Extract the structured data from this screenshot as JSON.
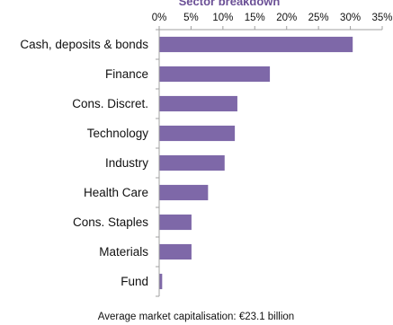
{
  "chart_data": {
    "type": "bar",
    "orientation": "horizontal",
    "title": "Sector breakdown",
    "categories": [
      "Cash, deposits & bonds",
      "Finance",
      "Cons. Discret.",
      "Technology",
      "Industry",
      "Health Care",
      "Cons. Staples",
      "Materials",
      "Fund"
    ],
    "values": [
      30.3,
      17.3,
      12.2,
      11.8,
      10.2,
      7.6,
      5.0,
      5.0,
      0.4
    ],
    "xlim": [
      0,
      35
    ],
    "x_ticks": [
      "0%",
      "5%",
      "10%",
      "15%",
      "20%",
      "25%",
      "30%",
      "35%"
    ],
    "x_axis_position": "top",
    "grid": false,
    "legend": "none",
    "bar_color": "#7e68a8",
    "axis_color": "#a0a0a0",
    "title_color": "#6b5096",
    "footnote": "Average market capitalisation: €23.1 billion"
  }
}
